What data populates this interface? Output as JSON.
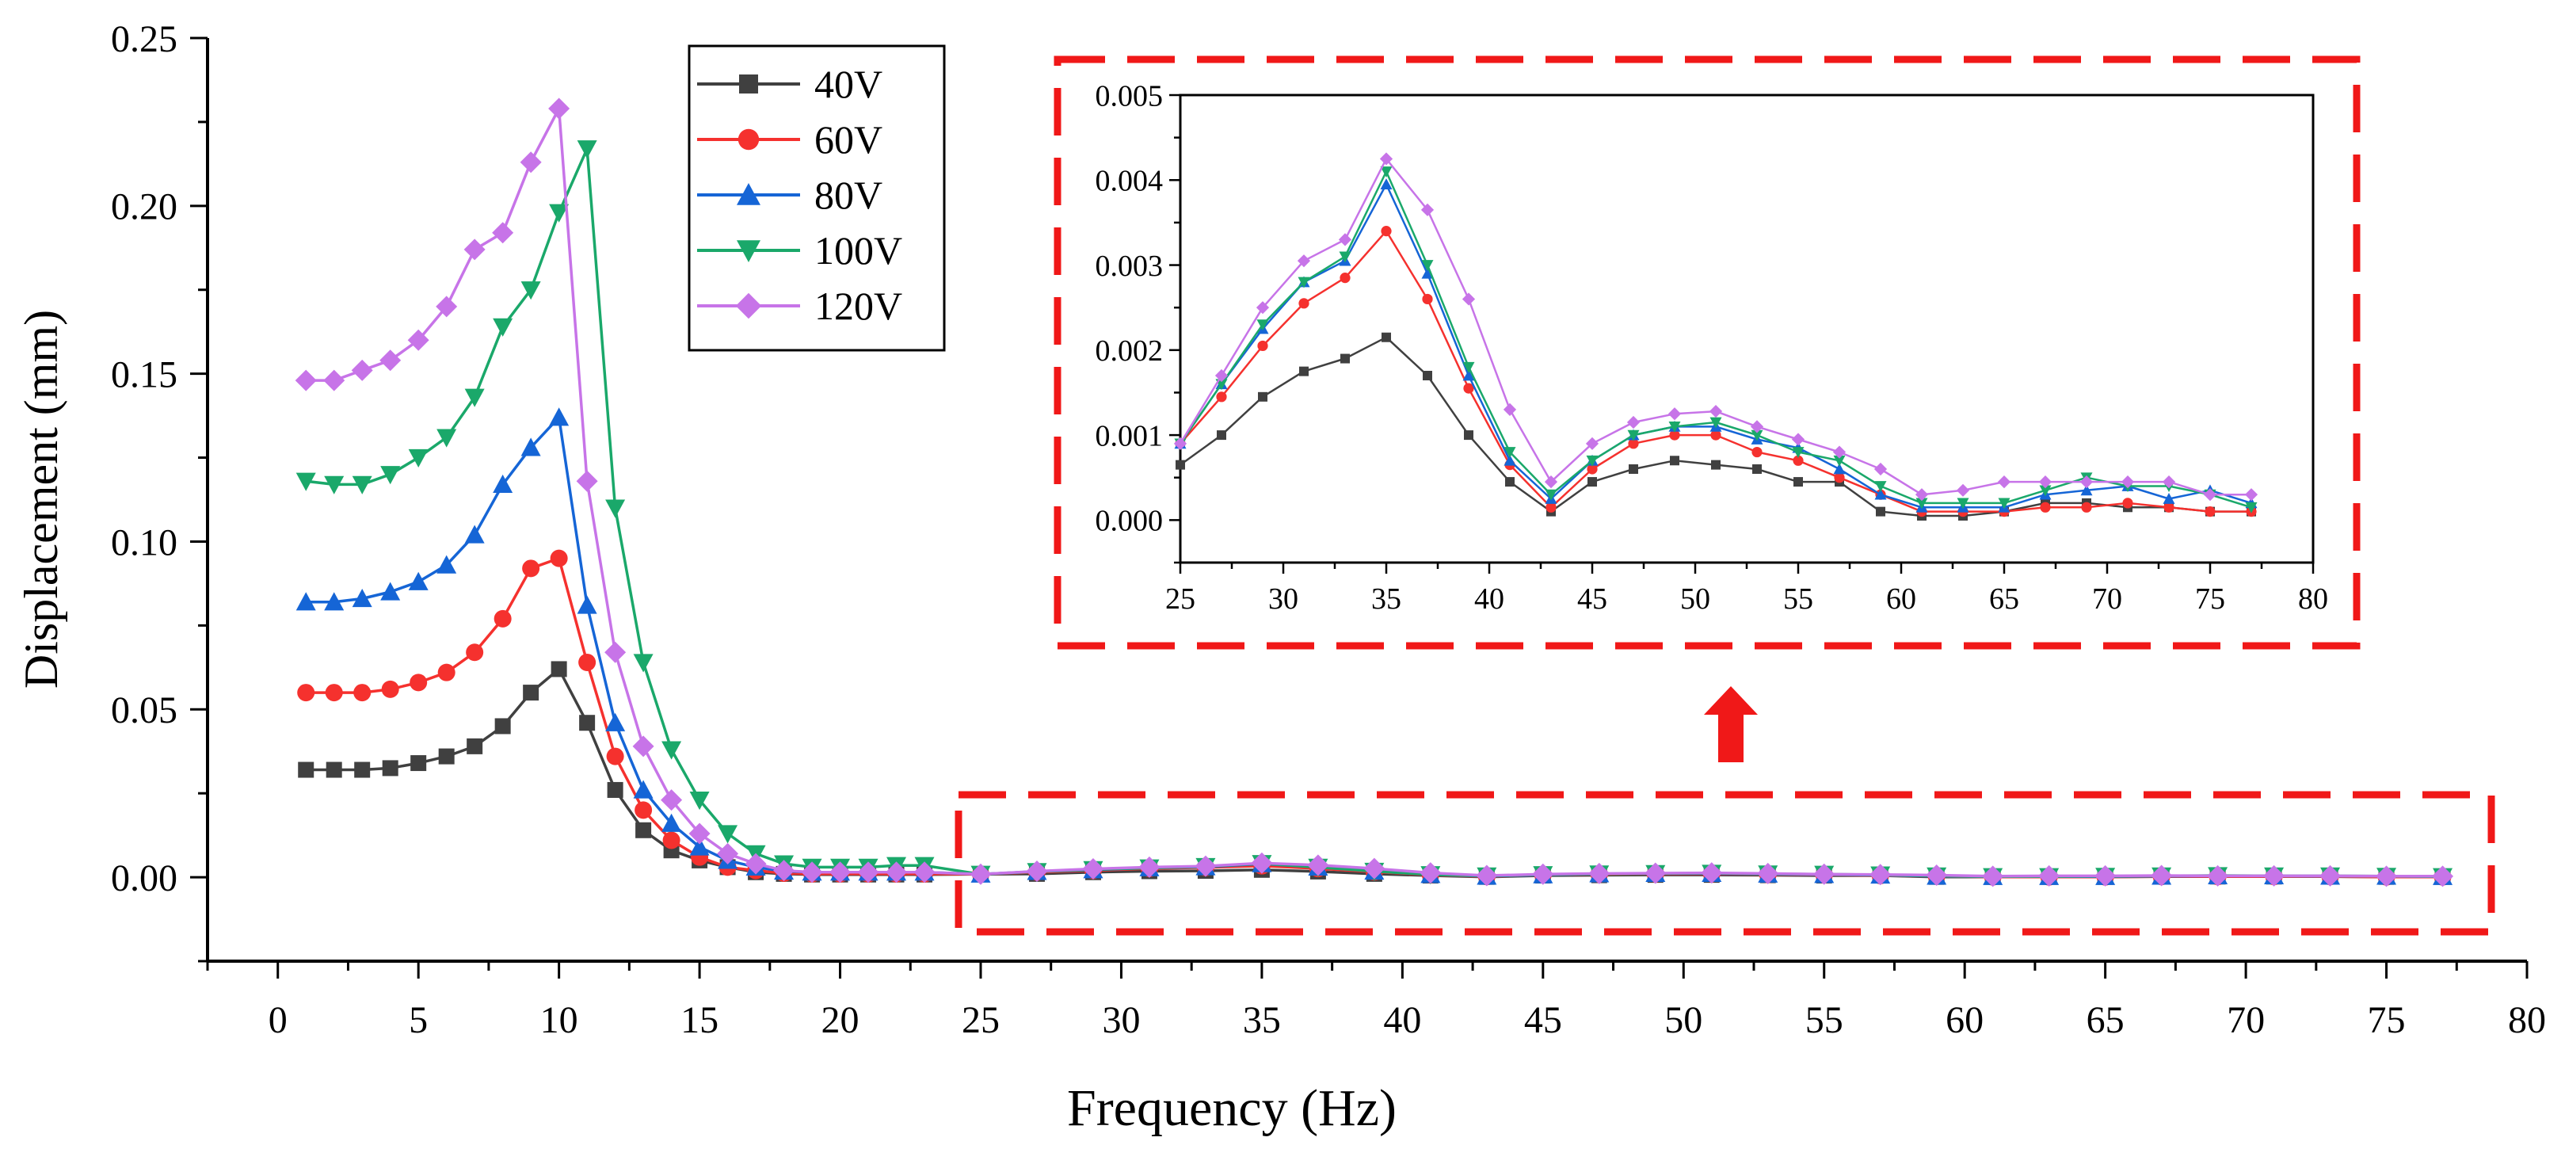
{
  "chart_data": [
    {
      "id": "main",
      "type": "line",
      "title": "",
      "xlabel": "Frequency (Hz)",
      "ylabel": "Displacement (mm)",
      "xlim": [
        -2.5,
        80
      ],
      "ylim": [
        -0.025,
        0.25
      ],
      "xticks": [
        0,
        5,
        10,
        15,
        20,
        25,
        30,
        35,
        40,
        45,
        50,
        55,
        60,
        65,
        70,
        75,
        80
      ],
      "xtick_labels": [
        "0",
        "5",
        "10",
        "15",
        "20",
        "25",
        "30",
        "35",
        "40",
        "45",
        "50",
        "55",
        "60",
        "65",
        "70",
        "75",
        "80"
      ],
      "yticks": [
        0,
        0.05,
        0.1,
        0.15,
        0.2,
        0.25
      ],
      "ytick_labels": [
        "0.00",
        "0.05",
        "0.10",
        "0.15",
        "0.20",
        "0.25"
      ],
      "grid": false,
      "legend": "top-left-inside",
      "x": [
        1,
        2,
        3,
        4,
        5,
        6,
        7,
        8,
        9,
        10,
        11,
        12,
        13,
        14,
        15,
        16,
        17,
        18,
        19,
        20,
        21,
        22,
        23,
        25,
        27,
        29,
        31,
        33,
        35,
        37,
        39,
        41,
        43,
        45,
        47,
        49,
        51,
        53,
        55,
        57,
        59,
        61,
        63,
        65,
        67,
        69,
        71,
        73,
        75,
        77
      ],
      "series": [
        {
          "name": "40V",
          "color": "#404040",
          "marker": "square",
          "values": [
            0.032,
            0.032,
            0.032,
            0.0325,
            0.034,
            0.036,
            0.039,
            0.045,
            0.055,
            0.062,
            0.046,
            0.026,
            0.014,
            0.008,
            0.005,
            0.003,
            0.0015,
            0.001,
            0.0008,
            0.0008,
            0.0008,
            0.0008,
            0.0008,
            0.0009,
            0.001,
            0.0015,
            0.0018,
            0.0019,
            0.0022,
            0.0017,
            0.001,
            0.0005,
            0.0001,
            0.0005,
            0.0006,
            0.0007,
            0.0007,
            0.0006,
            0.0005,
            0.0005,
            0.0001,
            0.0001,
            0.0001,
            0.0001,
            0.0002,
            0.0002,
            0.0002,
            0.0002,
            0.0001,
            0.0001
          ]
        },
        {
          "name": "60V",
          "color": "#f5312e",
          "marker": "circle",
          "values": [
            0.055,
            0.055,
            0.055,
            0.056,
            0.058,
            0.061,
            0.067,
            0.077,
            0.092,
            0.095,
            0.064,
            0.036,
            0.02,
            0.011,
            0.006,
            0.003,
            0.002,
            0.0012,
            0.001,
            0.001,
            0.001,
            0.001,
            0.001,
            0.0009,
            0.0015,
            0.002,
            0.0026,
            0.0029,
            0.0034,
            0.0026,
            0.0016,
            0.0007,
            0.0002,
            0.0007,
            0.0009,
            0.001,
            0.001,
            0.0008,
            0.0007,
            0.0005,
            0.0003,
            0.0001,
            0.0001,
            0.0001,
            0.0002,
            0.0002,
            0.0002,
            0.0002,
            0.0001,
            0.0001
          ]
        },
        {
          "name": "80V",
          "color": "#1565d6",
          "marker": "triangle-up",
          "values": [
            0.082,
            0.082,
            0.083,
            0.085,
            0.088,
            0.093,
            0.102,
            0.117,
            0.128,
            0.137,
            0.081,
            0.046,
            0.026,
            0.016,
            0.009,
            0.005,
            0.003,
            0.0018,
            0.0015,
            0.0015,
            0.0015,
            0.0015,
            0.0015,
            0.0009,
            0.0017,
            0.0022,
            0.0028,
            0.0031,
            0.004,
            0.003,
            0.0018,
            0.0008,
            0.0003,
            0.0007,
            0.001,
            0.0011,
            0.0011,
            0.0009,
            0.0008,
            0.0006,
            0.0003,
            0.0002,
            0.0002,
            0.0002,
            0.0003,
            0.0004,
            0.0004,
            0.0003,
            0.0003,
            0.0002
          ]
        },
        {
          "name": "100V",
          "color": "#1aa86a",
          "marker": "triangle-down",
          "values": [
            0.118,
            0.117,
            0.117,
            0.12,
            0.125,
            0.131,
            0.143,
            0.164,
            0.175,
            0.198,
            0.217,
            0.11,
            0.064,
            0.038,
            0.023,
            0.013,
            0.007,
            0.004,
            0.003,
            0.003,
            0.003,
            0.0035,
            0.0035,
            0.0009,
            0.0017,
            0.0023,
            0.0028,
            0.0032,
            0.0041,
            0.003,
            0.0018,
            0.0008,
            0.0004,
            0.0008,
            0.001,
            0.0011,
            0.0012,
            0.001,
            0.0009,
            0.0007,
            0.0004,
            0.0002,
            0.0002,
            0.0003,
            0.0004,
            0.0005,
            0.0004,
            0.0004,
            0.0003,
            0.0002
          ]
        },
        {
          "name": "120V",
          "color": "#c774e8",
          "marker": "diamond",
          "values": [
            0.148,
            0.148,
            0.151,
            0.154,
            0.16,
            0.17,
            0.187,
            0.192,
            0.213,
            0.229,
            0.118,
            0.067,
            0.039,
            0.023,
            0.013,
            0.007,
            0.004,
            0.002,
            0.0015,
            0.0015,
            0.0015,
            0.0015,
            0.0015,
            0.0009,
            0.0018,
            0.0025,
            0.003,
            0.0033,
            0.0042,
            0.0036,
            0.0026,
            0.0013,
            0.0005,
            0.0009,
            0.0011,
            0.0012,
            0.0013,
            0.0011,
            0.0009,
            0.0008,
            0.0006,
            0.0003,
            0.0004,
            0.0004,
            0.0005,
            0.0004,
            0.0004,
            0.0004,
            0.0003,
            0.0003
          ]
        }
      ]
    },
    {
      "id": "inset",
      "type": "line",
      "title": "",
      "xlabel": "",
      "ylabel": "",
      "xlim": [
        25,
        80
      ],
      "ylim": [
        -0.0005,
        0.005
      ],
      "xticks": [
        25,
        30,
        35,
        40,
        45,
        50,
        55,
        60,
        65,
        70,
        75,
        80
      ],
      "xtick_labels": [
        "25",
        "30",
        "35",
        "40",
        "45",
        "50",
        "55",
        "60",
        "65",
        "70",
        "75",
        "80"
      ],
      "yticks": [
        0,
        0.001,
        0.002,
        0.003,
        0.004,
        0.005
      ],
      "ytick_labels": [
        "0.000",
        "0.001",
        "0.002",
        "0.003",
        "0.004",
        "0.005"
      ],
      "grid": false,
      "x": [
        25,
        27,
        29,
        31,
        33,
        35,
        37,
        39,
        41,
        43,
        45,
        47,
        49,
        51,
        53,
        55,
        57,
        59,
        61,
        63,
        65,
        67,
        69,
        71,
        73,
        75,
        77
      ],
      "series": [
        {
          "name": "40V",
          "color": "#404040",
          "marker": "square",
          "values": [
            0.00065,
            0.001,
            0.00145,
            0.00175,
            0.0019,
            0.00215,
            0.0017,
            0.001,
            0.00045,
            0.0001,
            0.00045,
            0.0006,
            0.0007,
            0.00065,
            0.0006,
            0.00045,
            0.00045,
            0.0001,
            5e-05,
            5e-05,
            0.0001,
            0.0002,
            0.0002,
            0.00015,
            0.00015,
            0.0001,
            0.0001
          ]
        },
        {
          "name": "60V",
          "color": "#f5312e",
          "marker": "circle",
          "values": [
            0.0009,
            0.00145,
            0.00205,
            0.00255,
            0.00285,
            0.0034,
            0.0026,
            0.00155,
            0.00065,
            0.00015,
            0.0006,
            0.0009,
            0.001,
            0.001,
            0.0008,
            0.0007,
            0.0005,
            0.0003,
            0.0001,
            0.0001,
            0.0001,
            0.00015,
            0.00015,
            0.0002,
            0.00015,
            0.0001,
            0.0001
          ]
        },
        {
          "name": "80V",
          "color": "#1565d6",
          "marker": "triangle-up",
          "values": [
            0.0009,
            0.0016,
            0.00225,
            0.0028,
            0.00305,
            0.00395,
            0.0029,
            0.0017,
            0.0007,
            0.00025,
            0.0007,
            0.001,
            0.0011,
            0.0011,
            0.00095,
            0.00085,
            0.0006,
            0.0003,
            0.00015,
            0.00015,
            0.00015,
            0.0003,
            0.00035,
            0.0004,
            0.00025,
            0.00035,
            0.0002
          ]
        },
        {
          "name": "100V",
          "color": "#1aa86a",
          "marker": "triangle-down",
          "values": [
            0.0009,
            0.0016,
            0.0023,
            0.0028,
            0.0031,
            0.0041,
            0.003,
            0.0018,
            0.0008,
            0.0003,
            0.0007,
            0.001,
            0.0011,
            0.00115,
            0.001,
            0.0008,
            0.0007,
            0.0004,
            0.0002,
            0.0002,
            0.0002,
            0.00035,
            0.0005,
            0.0004,
            0.0004,
            0.0003,
            0.00015
          ]
        },
        {
          "name": "120V",
          "color": "#c774e8",
          "marker": "diamond",
          "values": [
            0.0009,
            0.0017,
            0.0025,
            0.00305,
            0.0033,
            0.00425,
            0.00365,
            0.0026,
            0.0013,
            0.00045,
            0.0009,
            0.00115,
            0.00125,
            0.00128,
            0.0011,
            0.00095,
            0.0008,
            0.0006,
            0.0003,
            0.00035,
            0.00045,
            0.00045,
            0.00045,
            0.00045,
            0.00045,
            0.0003,
            0.0003
          ]
        }
      ]
    }
  ]
}
